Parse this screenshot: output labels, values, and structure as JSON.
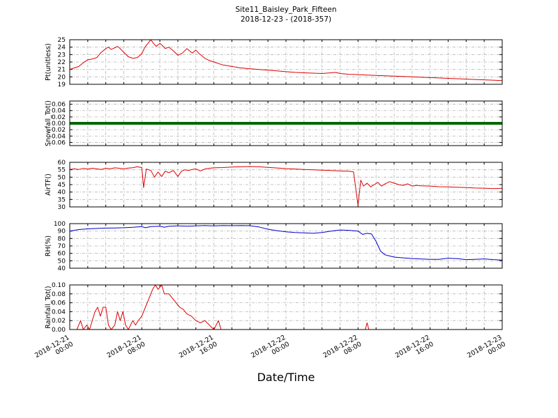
{
  "title": {
    "line1": "Site11_Baisley_Park_Fifteen",
    "line2": "2018-12-23 - (2018-357)"
  },
  "chart_data": {
    "type": "line",
    "title": "Site11_Baisley_Park_Fifteen",
    "subtitle": "2018-12-23 - (2018-357)",
    "xlabel": "Date/Time",
    "grid": true,
    "xlim_hours": [
      0,
      48
    ],
    "minor_tick_hours": 2,
    "xticks": [
      {
        "h": 0,
        "date": "2018-12-21",
        "time": "00:00"
      },
      {
        "h": 8,
        "date": "2018-12-21",
        "time": "08:00"
      },
      {
        "h": 16,
        "date": "2018-12-21",
        "time": "16:00"
      },
      {
        "h": 24,
        "date": "2018-12-22",
        "time": "00:00"
      },
      {
        "h": 32,
        "date": "2018-12-22",
        "time": "08:00"
      },
      {
        "h": 40,
        "date": "2018-12-22",
        "time": "16:00"
      },
      {
        "h": 48,
        "date": "2018-12-23",
        "time": "00:00"
      }
    ],
    "subplots": [
      {
        "ylabel": "Pt(unitless)",
        "color": "#dd0000",
        "linewidth": 1,
        "ylim": [
          19,
          25
        ],
        "ytick_values": [
          19,
          20,
          21,
          22,
          23,
          24,
          25
        ],
        "ytick_labels": [
          "19",
          "20",
          "21",
          "22",
          "23",
          "24",
          "25"
        ],
        "points": [
          [
            0,
            21.0
          ],
          [
            0.5,
            21.2
          ],
          [
            1,
            21.4
          ],
          [
            1.5,
            21.9
          ],
          [
            2,
            22.3
          ],
          [
            2.5,
            22.4
          ],
          [
            3,
            22.6
          ],
          [
            3.5,
            23.3
          ],
          [
            4,
            23.8
          ],
          [
            4.3,
            24.0
          ],
          [
            4.6,
            23.7
          ],
          [
            5,
            23.9
          ],
          [
            5.3,
            24.1
          ],
          [
            5.6,
            23.8
          ],
          [
            6,
            23.3
          ],
          [
            6.5,
            22.7
          ],
          [
            7,
            22.5
          ],
          [
            7.5,
            22.6
          ],
          [
            8,
            23.1
          ],
          [
            8.3,
            23.9
          ],
          [
            8.6,
            24.4
          ],
          [
            9,
            25.0
          ],
          [
            9.3,
            24.5
          ],
          [
            9.6,
            24.1
          ],
          [
            10,
            24.5
          ],
          [
            10.3,
            24.2
          ],
          [
            10.6,
            23.8
          ],
          [
            11,
            24.0
          ],
          [
            11.3,
            23.7
          ],
          [
            11.6,
            23.4
          ],
          [
            12,
            22.9
          ],
          [
            12.5,
            23.2
          ],
          [
            13,
            23.8
          ],
          [
            13.3,
            23.5
          ],
          [
            13.6,
            23.2
          ],
          [
            14,
            23.6
          ],
          [
            14.3,
            23.2
          ],
          [
            14.6,
            22.9
          ],
          [
            15,
            22.5
          ],
          [
            15.5,
            22.2
          ],
          [
            16,
            22.0
          ],
          [
            17,
            21.6
          ],
          [
            18,
            21.4
          ],
          [
            19,
            21.2
          ],
          [
            20,
            21.1
          ],
          [
            21,
            21.0
          ],
          [
            22,
            20.9
          ],
          [
            23,
            20.8
          ],
          [
            24,
            20.7
          ],
          [
            25,
            20.6
          ],
          [
            26,
            20.55
          ],
          [
            27,
            20.5
          ],
          [
            28,
            20.45
          ],
          [
            29,
            20.55
          ],
          [
            29.5,
            20.6
          ],
          [
            30,
            20.45
          ],
          [
            31,
            20.35
          ],
          [
            32,
            20.3
          ],
          [
            33,
            20.25
          ],
          [
            34,
            20.2
          ],
          [
            35,
            20.15
          ],
          [
            36,
            20.1
          ],
          [
            37,
            20.05
          ],
          [
            38,
            20.0
          ],
          [
            39,
            19.95
          ],
          [
            40,
            19.9
          ],
          [
            41,
            19.85
          ],
          [
            42,
            19.8
          ],
          [
            43,
            19.75
          ],
          [
            44,
            19.7
          ],
          [
            45,
            19.65
          ],
          [
            46,
            19.6
          ],
          [
            47,
            19.55
          ],
          [
            48,
            19.5
          ]
        ]
      },
      {
        "ylabel": "Snowfall_Tot()",
        "color": "#006600",
        "linewidth": 4,
        "ylim": [
          -0.07,
          0.07
        ],
        "ytick_values": [
          0.06,
          0.04,
          0.02,
          0.0,
          -0.02,
          -0.04,
          -0.06
        ],
        "ytick_labels": [
          "0.06",
          "0.04",
          "0.02",
          "0.00",
          "-0.02",
          "-0.04",
          "-0.06"
        ],
        "points": [
          [
            0,
            0
          ],
          [
            48,
            0
          ]
        ]
      },
      {
        "ylabel": "AirTF()",
        "color": "#dd0000",
        "linewidth": 1,
        "ylim": [
          30,
          60
        ],
        "ytick_values": [
          30,
          35,
          40,
          45,
          50,
          55,
          60
        ],
        "ytick_labels": [
          "30",
          "35",
          "40",
          "45",
          "50",
          "55",
          "60"
        ],
        "points": [
          [
            0,
            55.2
          ],
          [
            0.5,
            55.6
          ],
          [
            1,
            55.2
          ],
          [
            1.5,
            55.9
          ],
          [
            2,
            55.5
          ],
          [
            2.5,
            56.0
          ],
          [
            3,
            55.6
          ],
          [
            3.5,
            55.2
          ],
          [
            4,
            56.0
          ],
          [
            4.5,
            55.6
          ],
          [
            5,
            56.3
          ],
          [
            5.5,
            56.0
          ],
          [
            6,
            55.6
          ],
          [
            6.5,
            56.1
          ],
          [
            7,
            56.4
          ],
          [
            7.5,
            57.0
          ],
          [
            8,
            56.5
          ],
          [
            8.2,
            43.0
          ],
          [
            8.5,
            55.5
          ],
          [
            9,
            54.5
          ],
          [
            9.4,
            50.0
          ],
          [
            9.8,
            53.5
          ],
          [
            10.2,
            50.5
          ],
          [
            10.6,
            54.0
          ],
          [
            11,
            53.0
          ],
          [
            11.5,
            54.5
          ],
          [
            12,
            50.5
          ],
          [
            12.4,
            54.0
          ],
          [
            12.8,
            55.0
          ],
          [
            13.2,
            54.5
          ],
          [
            13.6,
            55.2
          ],
          [
            14,
            55.6
          ],
          [
            14.5,
            54.2
          ],
          [
            15,
            55.5
          ],
          [
            15.5,
            56.0
          ],
          [
            16,
            56.3
          ],
          [
            17,
            56.5
          ],
          [
            18,
            56.8
          ],
          [
            19,
            57.0
          ],
          [
            20,
            57.2
          ],
          [
            21,
            57.0
          ],
          [
            22,
            56.6
          ],
          [
            23,
            56.2
          ],
          [
            24,
            55.8
          ],
          [
            25,
            55.5
          ],
          [
            26,
            55.2
          ],
          [
            27,
            55.0
          ],
          [
            28,
            54.7
          ],
          [
            29,
            54.5
          ],
          [
            30,
            54.2
          ],
          [
            31,
            54.0
          ],
          [
            31.5,
            53.6
          ],
          [
            32,
            31.0
          ],
          [
            32.3,
            48.0
          ],
          [
            32.6,
            44.0
          ],
          [
            33,
            46.0
          ],
          [
            33.4,
            43.5
          ],
          [
            33.8,
            45.0
          ],
          [
            34.2,
            46.5
          ],
          [
            34.6,
            44.0
          ],
          [
            35,
            45.5
          ],
          [
            35.5,
            47.0
          ],
          [
            36,
            46.0
          ],
          [
            36.5,
            45.0
          ],
          [
            37,
            44.5
          ],
          [
            37.5,
            45.5
          ],
          [
            38,
            44.0
          ],
          [
            38.5,
            44.5
          ],
          [
            39,
            44.2
          ],
          [
            40,
            44.0
          ],
          [
            41,
            43.6
          ],
          [
            42,
            43.5
          ],
          [
            43,
            43.2
          ],
          [
            44,
            43.0
          ],
          [
            45,
            42.7
          ],
          [
            46,
            42.6
          ],
          [
            47,
            42.3
          ],
          [
            48,
            42.5
          ]
        ]
      },
      {
        "ylabel": "RH(%)",
        "color": "#0000cc",
        "linewidth": 1,
        "ylim": [
          40,
          100
        ],
        "ytick_values": [
          40,
          50,
          60,
          70,
          80,
          90,
          100
        ],
        "ytick_labels": [
          "40",
          "50",
          "60",
          "70",
          "80",
          "90",
          "100"
        ],
        "points": [
          [
            0,
            90
          ],
          [
            1,
            92
          ],
          [
            2,
            93
          ],
          [
            3,
            93.5
          ],
          [
            4,
            94
          ],
          [
            5,
            94.2
          ],
          [
            6,
            94.5
          ],
          [
            7,
            95
          ],
          [
            8,
            96
          ],
          [
            8.4,
            94.5
          ],
          [
            9,
            96
          ],
          [
            10,
            96.5
          ],
          [
            10.5,
            95.2
          ],
          [
            11,
            96.5
          ],
          [
            12,
            97
          ],
          [
            13,
            96.6
          ],
          [
            14,
            97
          ],
          [
            15,
            97.4
          ],
          [
            16,
            97
          ],
          [
            17,
            97.5
          ],
          [
            18,
            97.2
          ],
          [
            19,
            97.5
          ],
          [
            20,
            97.2
          ],
          [
            21,
            95.5
          ],
          [
            22,
            92.5
          ],
          [
            23,
            90.5
          ],
          [
            24,
            89
          ],
          [
            25,
            88
          ],
          [
            26,
            87.5
          ],
          [
            27,
            87
          ],
          [
            28,
            88
          ],
          [
            29,
            90
          ],
          [
            30,
            91.5
          ],
          [
            31,
            91
          ],
          [
            32,
            90
          ],
          [
            32.5,
            85.5
          ],
          [
            33,
            87
          ],
          [
            33.5,
            86
          ],
          [
            34,
            76
          ],
          [
            34.5,
            63
          ],
          [
            35,
            58
          ],
          [
            35.5,
            56.5
          ],
          [
            36,
            55
          ],
          [
            37,
            54
          ],
          [
            38,
            53
          ],
          [
            39,
            52.5
          ],
          [
            40,
            52
          ],
          [
            41,
            52
          ],
          [
            42,
            53.5
          ],
          [
            43,
            52.8
          ],
          [
            44,
            51.6
          ],
          [
            45,
            52
          ],
          [
            46,
            52.6
          ],
          [
            47,
            51.6
          ],
          [
            48,
            51
          ]
        ]
      },
      {
        "ylabel": "Rainfall_Tot()",
        "color": "#dd0000",
        "linewidth": 1,
        "ylim": [
          0,
          0.1
        ],
        "ytick_values": [
          0.0,
          0.02,
          0.04,
          0.06,
          0.08,
          0.1
        ],
        "ytick_labels": [
          "0.00",
          "0.02",
          "0.04",
          "0.06",
          "0.08",
          "0.10"
        ],
        "points": [
          [
            0,
            0
          ],
          [
            0.8,
            0
          ],
          [
            1,
            0.01
          ],
          [
            1.2,
            0.02
          ],
          [
            1.5,
            0
          ],
          [
            1.9,
            0.01
          ],
          [
            2.2,
            0
          ],
          [
            2.8,
            0.04
          ],
          [
            3.1,
            0.05
          ],
          [
            3.4,
            0.03
          ],
          [
            3.7,
            0.05
          ],
          [
            4,
            0.05
          ],
          [
            4.3,
            0.01
          ],
          [
            4.6,
            0
          ],
          [
            5,
            0.01
          ],
          [
            5.3,
            0.04
          ],
          [
            5.6,
            0.02
          ],
          [
            5.9,
            0.04
          ],
          [
            6.2,
            0.01
          ],
          [
            6.5,
            0
          ],
          [
            7,
            0.02
          ],
          [
            7.3,
            0.01
          ],
          [
            7.6,
            0.02
          ],
          [
            8,
            0.03
          ],
          [
            8.4,
            0.05
          ],
          [
            8.8,
            0.07
          ],
          [
            9.2,
            0.09
          ],
          [
            9.5,
            0.1
          ],
          [
            9.8,
            0.09
          ],
          [
            10.2,
            0.1
          ],
          [
            10.5,
            0.08
          ],
          [
            11,
            0.08
          ],
          [
            11.4,
            0.07
          ],
          [
            11.8,
            0.06
          ],
          [
            12.2,
            0.05
          ],
          [
            12.6,
            0.045
          ],
          [
            13,
            0.035
          ],
          [
            13.5,
            0.03
          ],
          [
            14,
            0.02
          ],
          [
            14.5,
            0.015
          ],
          [
            15,
            0.02
          ],
          [
            15.5,
            0.01
          ],
          [
            16,
            0
          ],
          [
            16.5,
            0.02
          ],
          [
            16.8,
            0
          ],
          [
            17.5,
            0
          ],
          [
            32.8,
            0
          ],
          [
            33,
            0.015
          ],
          [
            33.2,
            0
          ],
          [
            48,
            0
          ]
        ]
      }
    ]
  }
}
